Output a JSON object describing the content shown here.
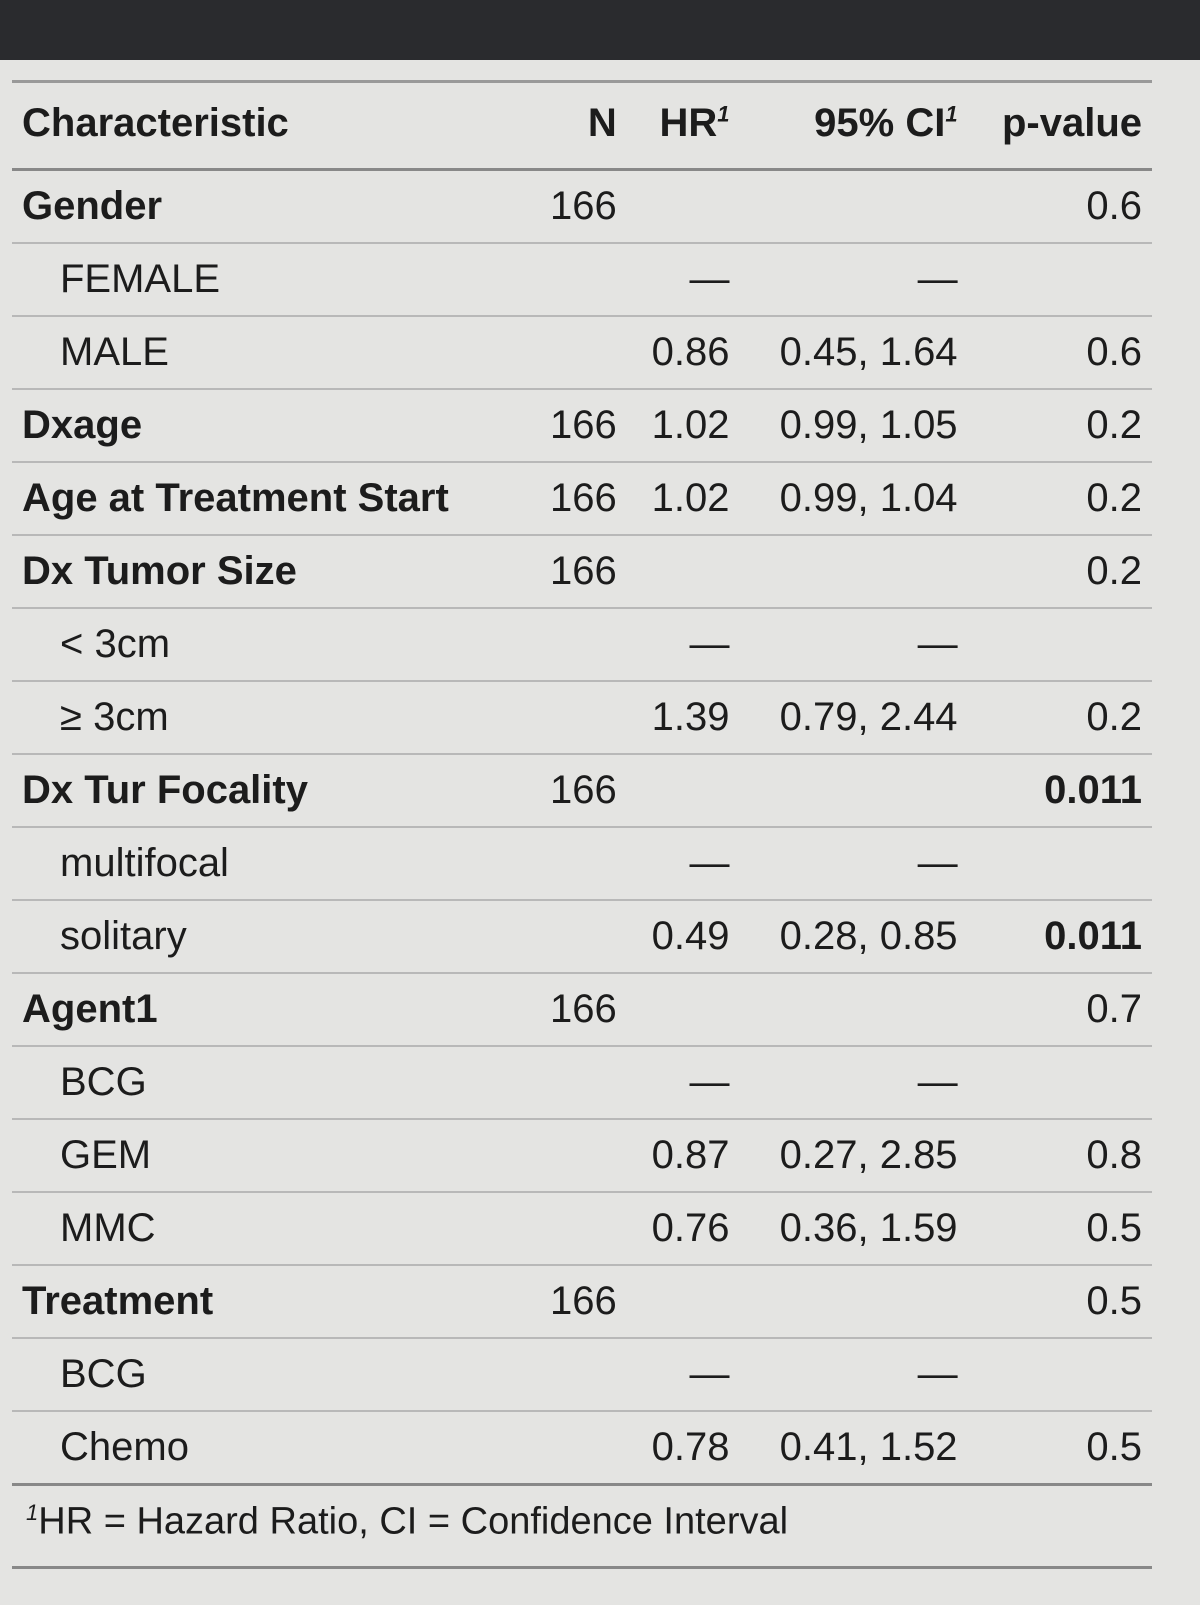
{
  "table": {
    "columns": [
      {
        "label": "Characteristic"
      },
      {
        "label": "N"
      },
      {
        "label": "HR",
        "mark": "1"
      },
      {
        "label": "95% CI",
        "mark": "1"
      },
      {
        "label": "p-value"
      }
    ],
    "rows": [
      {
        "level": 0,
        "cells": [
          "Gender",
          166,
          null,
          null,
          0.6
        ]
      },
      {
        "level": 1,
        "cells": [
          "FEMALE",
          null,
          "—",
          "—",
          null
        ]
      },
      {
        "level": 1,
        "cells": [
          "MALE",
          null,
          0.86,
          "0.45, 1.64",
          0.6
        ]
      },
      {
        "level": 0,
        "cells": [
          "Dxage",
          166,
          1.02,
          "0.99, 1.05",
          0.2
        ]
      },
      {
        "level": 0,
        "cells": [
          "Age at Treatment Start",
          166,
          1.02,
          "0.99, 1.04",
          0.2
        ]
      },
      {
        "level": 0,
        "cells": [
          "Dx Tumor Size",
          166,
          null,
          null,
          0.2
        ]
      },
      {
        "level": 1,
        "cells": [
          "< 3cm",
          null,
          "—",
          "—",
          null
        ]
      },
      {
        "level": 1,
        "cells": [
          "≥ 3cm",
          null,
          1.39,
          "0.79, 2.44",
          0.2
        ]
      },
      {
        "level": 0,
        "bold_p": true,
        "cells": [
          "Dx Tur Focality",
          166,
          null,
          null,
          0.011
        ]
      },
      {
        "level": 1,
        "cells": [
          "multifocal",
          null,
          "—",
          "—",
          null
        ]
      },
      {
        "level": 1,
        "bold_p": true,
        "cells": [
          "solitary",
          null,
          0.49,
          "0.28, 0.85",
          0.011
        ]
      },
      {
        "level": 0,
        "cells": [
          "Agent1",
          166,
          null,
          null,
          0.7
        ]
      },
      {
        "level": 1,
        "cells": [
          "BCG",
          null,
          "—",
          "—",
          null
        ]
      },
      {
        "level": 1,
        "cells": [
          "GEM",
          null,
          0.87,
          "0.27, 2.85",
          0.8
        ]
      },
      {
        "level": 1,
        "cells": [
          "MMC",
          null,
          0.76,
          "0.36, 1.59",
          0.5
        ]
      },
      {
        "level": 0,
        "cells": [
          "Treatment",
          166,
          null,
          null,
          0.5
        ]
      },
      {
        "level": 1,
        "cells": [
          "BCG",
          null,
          "—",
          "—",
          null
        ]
      },
      {
        "level": 1,
        "cells": [
          "Chemo",
          null,
          0.78,
          "0.41, 1.52",
          0.5
        ]
      }
    ]
  },
  "footnote": {
    "mark": "1",
    "text": "HR = Hazard Ratio, CI = Confidence Interval"
  }
}
